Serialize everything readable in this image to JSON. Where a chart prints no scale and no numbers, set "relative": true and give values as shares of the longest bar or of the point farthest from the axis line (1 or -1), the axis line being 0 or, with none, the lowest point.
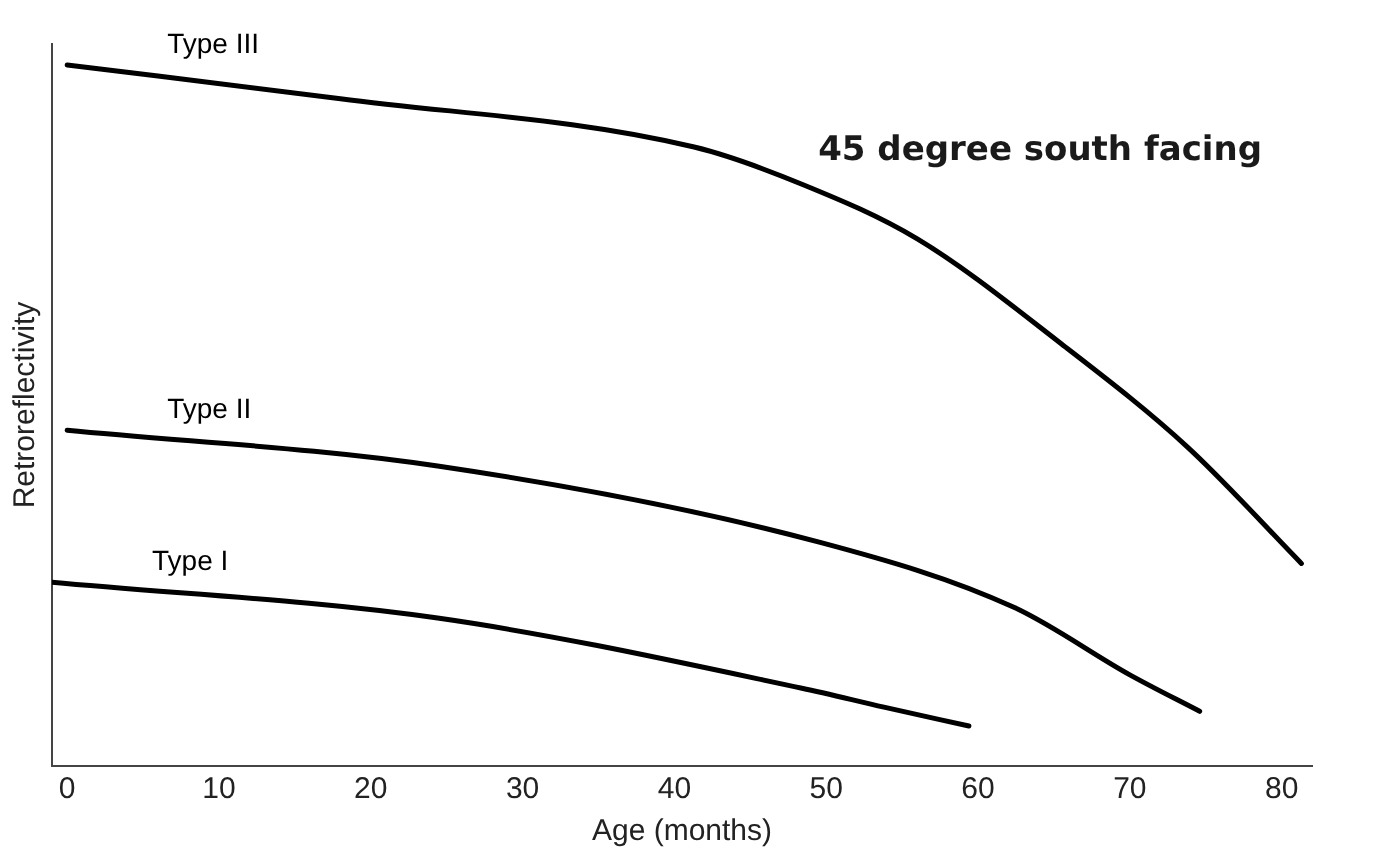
{
  "chart_data": {
    "type": "line",
    "relative": true,
    "xlabel": "Age (months)",
    "ylabel": "Retroreflectivity",
    "xlim": [
      -1,
      82
    ],
    "xticks": [
      0,
      10,
      20,
      30,
      40,
      50,
      60,
      70,
      80
    ],
    "grid": false,
    "legend": false,
    "marker": "none",
    "line_style": "solid",
    "annotations": [
      "45 degree south facing"
    ],
    "series": [
      {
        "name": "Type III",
        "color": "#000000",
        "x": [
          0,
          18,
          41.3,
          48.4,
          56,
          65.5,
          73.8,
          81.3
        ],
        "values": [
          1.0,
          0.952,
          0.883,
          0.83,
          0.752,
          0.602,
          0.455,
          0.289
        ]
      },
      {
        "name": "Type II",
        "color": "#000000",
        "x": [
          0,
          24.4,
          49.6,
          62.4,
          70,
          74.6
        ],
        "values": [
          0.479,
          0.428,
          0.319,
          0.226,
          0.13,
          0.078
        ]
      },
      {
        "name": "Type I",
        "color": "#000000",
        "x": [
          -1,
          24.4,
          48.4,
          53.8,
          59.4
        ],
        "values": [
          0.262,
          0.211,
          0.111,
          0.084,
          0.057
        ]
      }
    ]
  }
}
